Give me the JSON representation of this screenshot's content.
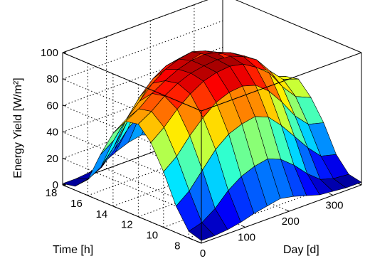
{
  "chart_data": {
    "type": "surface3d",
    "title": "",
    "zlabel": "Energy Yield [W/m²]",
    "ylabel": "Time [h]",
    "xlabel": "Day [d]",
    "zlim": [
      0,
      100
    ],
    "ylim": [
      7,
      18
    ],
    "xlim": [
      0,
      365
    ],
    "ztick_labels": [
      "0",
      "20",
      "40",
      "60",
      "80",
      "100"
    ],
    "ytick_labels": [
      "8",
      "10",
      "12",
      "14",
      "16",
      "18"
    ],
    "xtick_labels": [
      "0",
      "100",
      "200",
      "300"
    ],
    "grid": true,
    "colormap": "jet",
    "days": [
      0,
      30,
      60,
      90,
      120,
      150,
      180,
      210,
      240,
      270,
      300,
      330,
      365
    ],
    "hours": [
      7,
      8,
      9,
      10,
      11,
      12,
      13,
      14,
      15,
      16,
      17,
      18
    ],
    "yield": [
      [
        2,
        2,
        3,
        5,
        8,
        10,
        12,
        10,
        7,
        4,
        3,
        2,
        2
      ],
      [
        5,
        8,
        15,
        25,
        32,
        36,
        38,
        34,
        26,
        16,
        8,
        5,
        4
      ],
      [
        20,
        28,
        40,
        52,
        60,
        64,
        66,
        62,
        52,
        40,
        28,
        18,
        15
      ],
      [
        42,
        50,
        62,
        72,
        80,
        84,
        85,
        82,
        74,
        62,
        48,
        38,
        35
      ],
      [
        60,
        68,
        78,
        86,
        92,
        95,
        96,
        94,
        88,
        80,
        66,
        55,
        50
      ],
      [
        70,
        76,
        84,
        90,
        94,
        96,
        97,
        96,
        92,
        86,
        74,
        64,
        60
      ],
      [
        68,
        74,
        82,
        88,
        93,
        96,
        97,
        95,
        91,
        85,
        72,
        62,
        58
      ],
      [
        55,
        62,
        72,
        82,
        89,
        93,
        95,
        92,
        86,
        76,
        62,
        52,
        48
      ],
      [
        35,
        42,
        55,
        68,
        78,
        84,
        86,
        82,
        72,
        58,
        42,
        32,
        30
      ],
      [
        12,
        18,
        30,
        45,
        58,
        66,
        68,
        62,
        50,
        35,
        20,
        12,
        10
      ],
      [
        3,
        5,
        10,
        20,
        32,
        40,
        42,
        36,
        26,
        14,
        6,
        3,
        2
      ],
      [
        1,
        1,
        2,
        5,
        10,
        14,
        16,
        12,
        7,
        3,
        1,
        1,
        1
      ]
    ]
  }
}
